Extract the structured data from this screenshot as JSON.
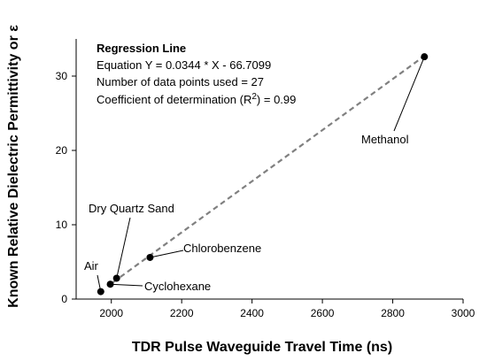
{
  "chart_data": {
    "type": "scatter",
    "title": "",
    "xlabel": "TDR Pulse Waveguide Travel Time (ns)",
    "ylabel": "Known Relative Dielectric Permittivity or ε",
    "xlim": [
      1900,
      3000
    ],
    "ylim": [
      0,
      35
    ],
    "x_ticks": [
      2000,
      2200,
      2400,
      2600,
      2800,
      3000
    ],
    "y_ticks": [
      0,
      10,
      20,
      30
    ],
    "grid": false,
    "points": [
      {
        "label": "Air",
        "x": 1970,
        "y": 1.0
      },
      {
        "label": "Cyclohexane",
        "x": 1997,
        "y": 2.0
      },
      {
        "label": "Dry Quartz Sand",
        "x": 2015,
        "y": 2.8
      },
      {
        "label": "Chlorobenzene",
        "x": 2110,
        "y": 5.6
      },
      {
        "label": "Methanol",
        "x": 2890,
        "y": 32.6
      }
    ],
    "regression": {
      "slope": 0.0344,
      "intercept": -66.7099,
      "x_from": 2005,
      "x_to": 2890,
      "color": "#808080",
      "style": "dashed"
    },
    "annotation": {
      "heading": "Regression Line",
      "equation": "Equation Y = 0.0344 * X - 66.7099",
      "n_points": "Number of data points used = 27",
      "r2_prefix": "Coefficient of determination (R",
      "r2_sup": "2",
      "r2_suffix": ") = 0.99"
    },
    "colors": {
      "point": "#000000",
      "line": "#808080",
      "axis": "#000000"
    }
  }
}
